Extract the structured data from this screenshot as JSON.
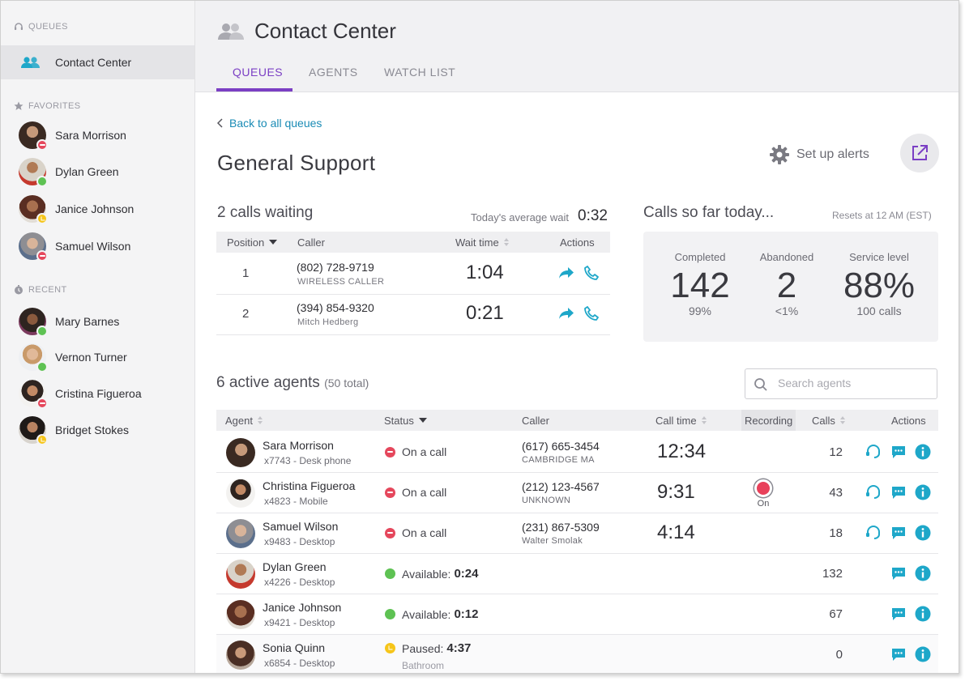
{
  "sidebar": {
    "queues_header": "QUEUES",
    "queue_item": "Contact Center",
    "favorites_header": "FAVORITES",
    "favorites": [
      {
        "name": "Sara Morrison",
        "status": "busy"
      },
      {
        "name": "Dylan Green",
        "status": "available"
      },
      {
        "name": "Janice Johnson",
        "status": "away"
      },
      {
        "name": "Samuel Wilson",
        "status": "busy"
      }
    ],
    "recent_header": "RECENT",
    "recent": [
      {
        "name": "Mary Barnes",
        "status": "available"
      },
      {
        "name": "Vernon Turner",
        "status": "available"
      },
      {
        "name": "Cristina Figueroa",
        "status": "busy"
      },
      {
        "name": "Bridget Stokes",
        "status": "away"
      }
    ]
  },
  "header": {
    "title": "Contact Center",
    "tabs": [
      "QUEUES",
      "AGENTS",
      "WATCH LIST"
    ],
    "active_tab": "QUEUES"
  },
  "main": {
    "back_link": "Back to all queues",
    "queue_title": "General Support",
    "alerts_label": "Set up alerts",
    "waiting": {
      "title": "2 calls waiting",
      "avg_wait_label": "Today's average wait",
      "avg_wait_value": "0:32",
      "columns": {
        "position": "Position",
        "caller": "Caller",
        "wait_time": "Wait time",
        "actions": "Actions"
      },
      "rows": [
        {
          "position": "1",
          "number": "(802) 728-9719",
          "sub": "WIRELESS CALLER",
          "wait": "1:04"
        },
        {
          "position": "2",
          "number": "(394) 854-9320",
          "sub": "Mitch Hedberg",
          "wait": "0:21"
        }
      ]
    },
    "stats": {
      "title": "Calls so far today...",
      "resets": "Resets at 12 AM (EST)",
      "completed": {
        "label": "Completed",
        "value": "142",
        "sub": "99%"
      },
      "abandoned": {
        "label": "Abandoned",
        "value": "2",
        "sub": "<1%"
      },
      "service": {
        "label": "Service level",
        "value": "88%",
        "sub": "100 calls"
      }
    },
    "agents": {
      "title": "6 active agents",
      "total": "(50 total)",
      "search_placeholder": "Search agents",
      "columns": {
        "agent": "Agent",
        "status": "Status",
        "caller": "Caller",
        "call_time": "Call time",
        "recording": "Recording",
        "calls": "Calls",
        "actions": "Actions"
      },
      "rows": [
        {
          "name": "Sara Morrison",
          "ext": "x7743 - Desk phone",
          "status": "On a call",
          "status_value": "",
          "status_sub": "",
          "caller": "(617) 665-3454",
          "caller_sub": "CAMBRIDGE MA",
          "call_time": "12:34",
          "recording": "",
          "calls": "12"
        },
        {
          "name": "Christina Figueroa",
          "ext": "x4823 - Mobile",
          "status": "On a call",
          "status_value": "",
          "status_sub": "",
          "caller": "(212) 123-4567",
          "caller_sub": "UNKNOWN",
          "call_time": "9:31",
          "recording": "On",
          "calls": "43"
        },
        {
          "name": "Samuel Wilson",
          "ext": "x9483 - Desktop",
          "status": "On a call",
          "status_value": "",
          "status_sub": "",
          "caller": "(231) 867-5309",
          "caller_sub": "Walter Smolak",
          "call_time": "4:14",
          "recording": "",
          "calls": "18"
        },
        {
          "name": "Dylan Green",
          "ext": "x4226 - Desktop",
          "status": "Available:",
          "status_value": "0:24",
          "status_sub": "",
          "caller": "",
          "caller_sub": "",
          "call_time": "",
          "recording": "",
          "calls": "132"
        },
        {
          "name": "Janice Johnson",
          "ext": "x9421 - Desktop",
          "status": "Available:",
          "status_value": "0:12",
          "status_sub": "",
          "caller": "",
          "caller_sub": "",
          "call_time": "",
          "recording": "",
          "calls": "67"
        },
        {
          "name": "Sonia Quinn",
          "ext": "x6854 - Desktop",
          "status": "Paused:",
          "status_value": "4:37",
          "status_sub": "Bathroom",
          "caller": "",
          "caller_sub": "",
          "call_time": "",
          "recording": "",
          "calls": "0"
        }
      ]
    }
  },
  "colors": {
    "accent": "#7b3fc4",
    "link": "#1a8bb5",
    "action_teal": "#1ea7c9",
    "busy": "#e5475c",
    "available": "#5ec253",
    "away": "#f6c51a"
  }
}
